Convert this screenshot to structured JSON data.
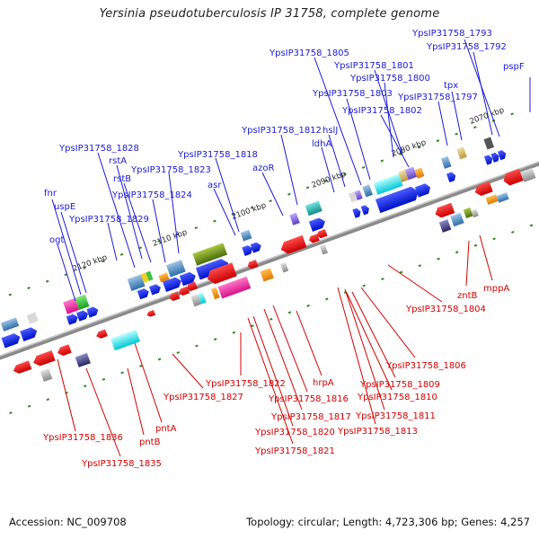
{
  "title": "Yersinia pseudotuberculosis IP 31758, complete genome",
  "footer": {
    "accession": "Accession: NC_009708",
    "stats": "Topology: circular; Length: 4,723,306 bp; Genes: 4,257"
  },
  "colors": {
    "forward_label": "#1a1adb",
    "reverse_label": "#d40000",
    "backbone": "#8a8a8a",
    "tick": "#2e8b1f"
  },
  "positions_kbp": [
    "2070 kbp",
    "2080 kbp",
    "2090 kbp",
    "2100 kbp",
    "2110 kbp",
    "2120 kbp"
  ],
  "forward_labels": [
    "YpsIP31758_1793",
    "YpsIP31758_1792",
    "pspF",
    "YpsIP31758_1805",
    "YpsIP31758_1801",
    "YpsIP31758_1800",
    "tpx",
    "YpsIP31758_1803",
    "YpsIP31758_1797",
    "YpsIP31758_1802",
    "YpsIP31758_1812",
    "hslJ",
    "ldhA",
    "azoR",
    "YpsIP31758_1818",
    "asr",
    "YpsIP31758_1828",
    "rstA",
    "rstB",
    "YpsIP31758_1823",
    "YpsIP31758_1824",
    "fnr",
    "uspE",
    "YpsIP31758_1829",
    "ogt"
  ],
  "reverse_labels": [
    "zntB",
    "mppA",
    "YpsIP31758_1804",
    "YpsIP31758_1806",
    "YpsIP31758_1809",
    "YpsIP31758_1810",
    "YpsIP31758_1811",
    "YpsIP31758_1813",
    "hrpA",
    "YpsIP31758_1822",
    "YpsIP31758_1827",
    "YpsIP31758_1816",
    "YpsIP31758_1817",
    "YpsIP31758_1820",
    "YpsIP31758_1821",
    "pntA",
    "pntB",
    "YpsIP31758_1836",
    "YpsIP31758_1835"
  ]
}
